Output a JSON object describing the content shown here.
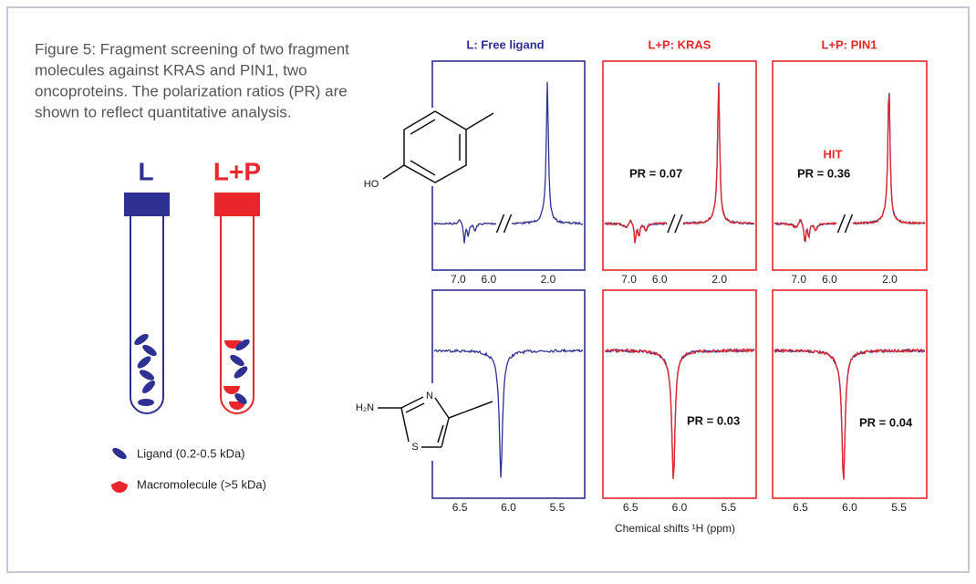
{
  "caption": [
    "Figure 5: Fragment screening of two fragment",
    "molecules against KRAS and PIN1, two",
    "oncoproteins. The polarization ratios (PR) are",
    "shown to reflect quantitative analysis."
  ],
  "tubes": [
    {
      "label": "L"
    },
    {
      "label": "L+P"
    }
  ],
  "legend": [
    {
      "label": "Ligand (0.2-0.5 kDa)"
    },
    {
      "label": "Macromolecule (>5 kDa)"
    }
  ],
  "columns": [
    {
      "title": "L: Free ligand"
    },
    {
      "title": "L+P: KRAS"
    },
    {
      "title": "L+P: PIN1"
    }
  ],
  "molecules": [
    {
      "labels": [
        "HO"
      ]
    },
    {
      "labels": [
        "H₂N",
        "N",
        "S"
      ]
    }
  ],
  "panels": {
    "row1": [
      {
        "annotations": [
          "PR = 0.07"
        ]
      },
      {
        "annotations": [
          "HIT",
          "PR = 0.36"
        ]
      }
    ],
    "row2": [
      {
        "annotations": [
          "PR = 0.03"
        ]
      },
      {
        "annotations": [
          "PR = 0.04"
        ]
      }
    ]
  },
  "row1_ticks": [
    "7.0",
    "6.0",
    "2.0"
  ],
  "row2_ticks": [
    "6.5",
    "6.0",
    "5.5"
  ],
  "x_axis_label": "Chemical shifts ¹H (ppm)"
}
